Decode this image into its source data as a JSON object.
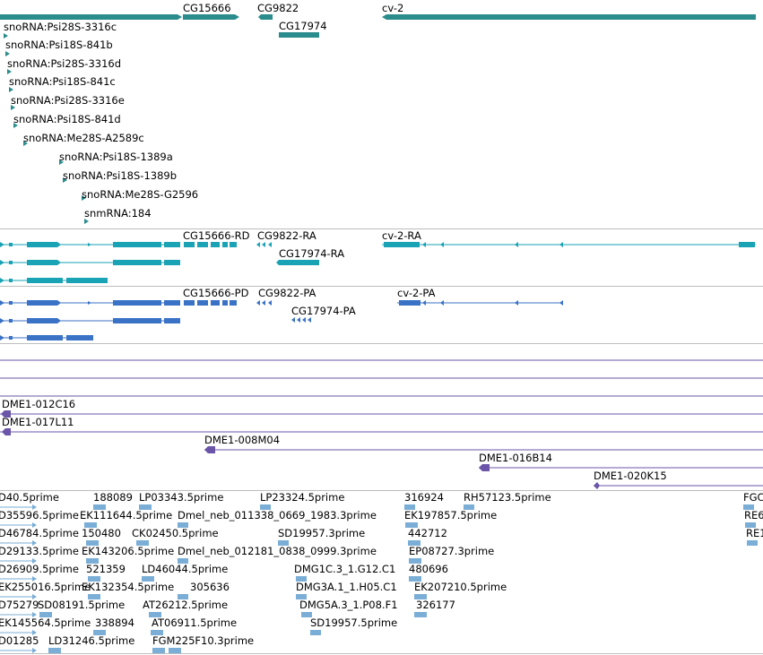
{
  "colors": {
    "gene": "#2a8c8c",
    "transcript_teal": "#1aa3b5",
    "transcript_blue": "#3a72c6",
    "clone": "#6a55a8",
    "est": "#7aaed6",
    "separator": "#bdbdbd"
  },
  "genes": {
    "top_labels": [
      "CG15666",
      "CG9822",
      "CG17974",
      "cv-2"
    ],
    "sno_labels": [
      "snoRNA:Psi28S-3316c",
      "snoRNA:Psi18S-841b",
      "snoRNA:Psi28S-3316d",
      "snoRNA:Psi18S-841c",
      "snoRNA:Psi28S-3316e",
      "snoRNA:Psi18S-841d",
      "snoRNA:Me28S-A2589c",
      "snoRNA:Psi18S-1389a",
      "snoRNA:Psi18S-1389b",
      "snoRNA:Me28S-G2596",
      "snmRNA:184"
    ]
  },
  "transcripts_ra": {
    "labels": [
      "CG15666-RD",
      "CG9822-RA",
      "CG17974-RA",
      "cv-2-RA"
    ]
  },
  "transcripts_pa": {
    "labels": [
      "CG15666-PD",
      "CG9822-PA",
      "CG17974-PA",
      "cv-2-PA"
    ]
  },
  "clones": {
    "labels": [
      "DME1-012C16",
      "DME1-017L11",
      "DME1-008M04",
      "DME1-016B14",
      "DME1-020K15"
    ]
  },
  "ests": {
    "labels": [
      "D40.5prime",
      "188089",
      "LP03343.5prime",
      "LP23324.5prime",
      "316924",
      "RH57123.5prime",
      "FGC",
      "D35596.5prime",
      "EK111644.5prime",
      "Dmel_neb_011338_0669_1983.3prime",
      "EK197857.5prime",
      "RE6",
      "D46784.5prime",
      "150480",
      "CK02450.5prime",
      "SD19957.3prime",
      "442712",
      "RE1",
      "D29133.5prime",
      "EK143206.5prime",
      "Dmel_neb_012181_0838_0999.3prime",
      "EP08727.3prime",
      "D26909.5prime",
      "521359",
      "LD46044.5prime",
      "DMG1C.3_1.G12.C1",
      "480696",
      "EK255016.5prime",
      "EK132354.5prime",
      "305636",
      "DMG3A.1_1.H05.C1",
      "EK207210.5prime",
      "D75279",
      "SD08191.5prime",
      "AT26212.5prime",
      "DMG5A.3_1.P08.F1",
      "326177",
      "EK145564.5prime",
      "338894",
      "AT06911.5prime",
      "SD19957.5prime",
      "D01285",
      "LD31246.5prime",
      "FGM225F10.3prime"
    ]
  }
}
